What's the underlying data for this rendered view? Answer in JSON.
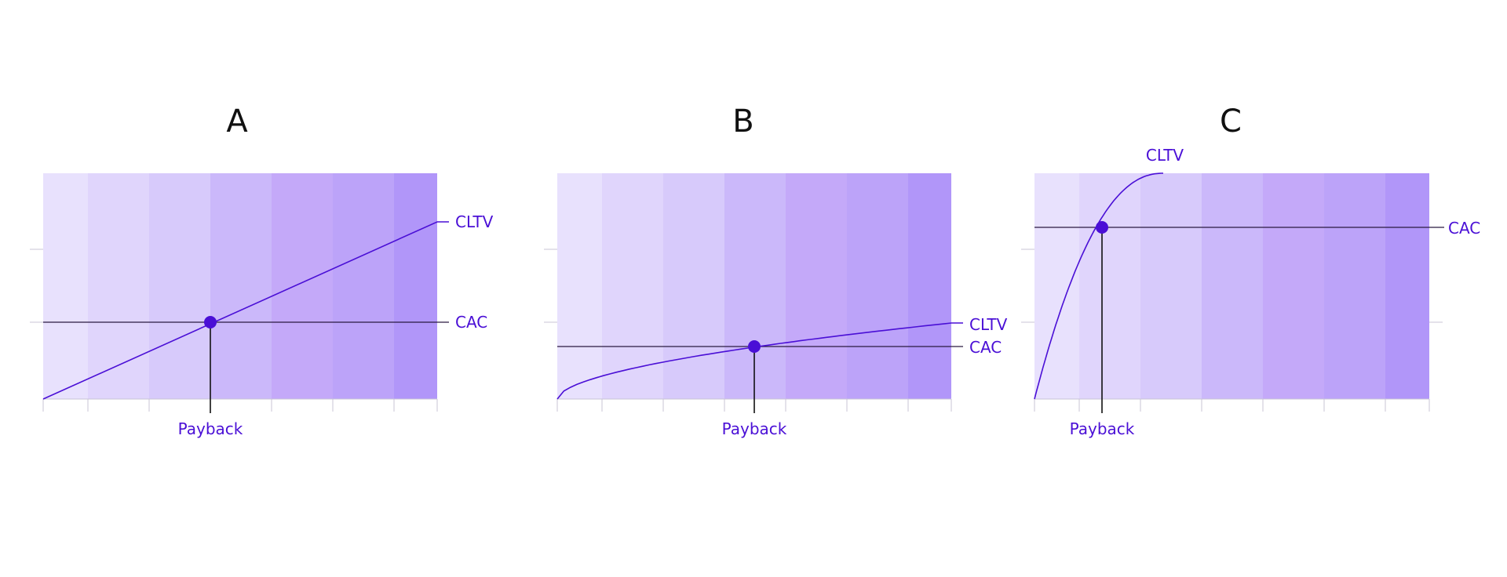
{
  "accent_color": "#4a0fd6",
  "line_color": "#2a1a40",
  "band_colors": [
    "#e8e1fd",
    "#e0d5fc",
    "#d7cafb",
    "#cbb8fa",
    "#c4a9f9",
    "#bca3f9",
    "#b196f9"
  ],
  "chart_data": [
    {
      "type": "line",
      "title": "A",
      "xlabel": "",
      "ylabel": "",
      "grid": false,
      "series": [
        {
          "name": "CLTV",
          "shape": "linear"
        },
        {
          "name": "CAC",
          "shape": "constant"
        }
      ],
      "marker_label": "Payback"
    },
    {
      "type": "line",
      "title": "B",
      "xlabel": "",
      "ylabel": "",
      "grid": false,
      "series": [
        {
          "name": "CLTV",
          "shape": "concave"
        },
        {
          "name": "CAC",
          "shape": "constant"
        }
      ],
      "marker_label": "Payback"
    },
    {
      "type": "line",
      "title": "C",
      "xlabel": "",
      "ylabel": "",
      "grid": false,
      "series": [
        {
          "name": "CLTV",
          "shape": "steep"
        },
        {
          "name": "CAC",
          "shape": "constant"
        }
      ],
      "marker_label": "Payback"
    }
  ]
}
